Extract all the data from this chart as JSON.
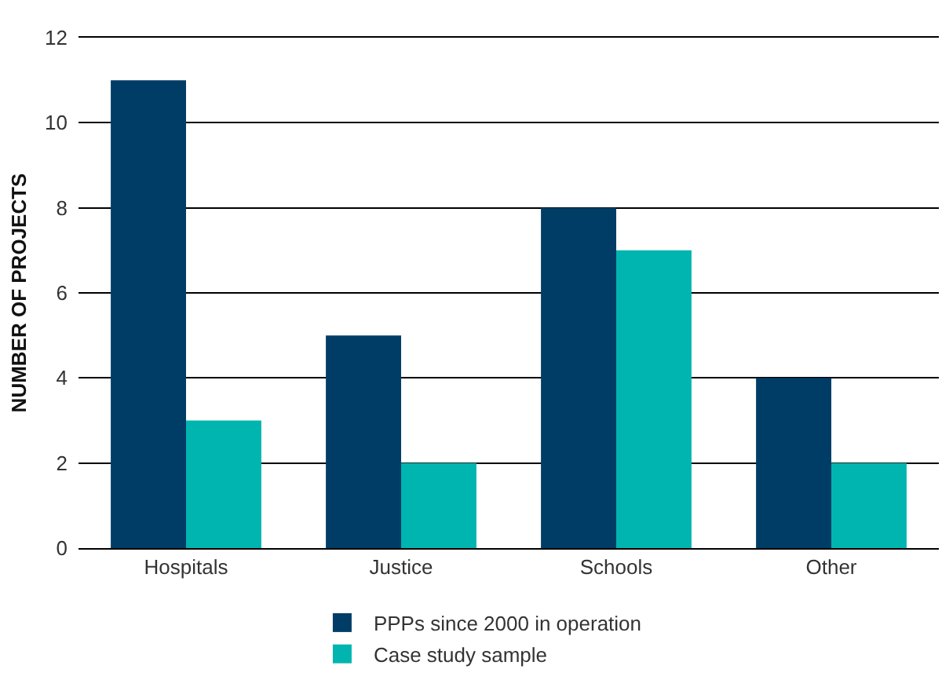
{
  "chart_data": {
    "type": "bar",
    "ylabel": "NUMBER OF PROJECTS",
    "categories": [
      "Hospitals",
      "Justice",
      "Schools",
      "Other"
    ],
    "series": [
      {
        "name": "PPPs since 2000 in operation",
        "color": "#003d66",
        "values": [
          11,
          5,
          8,
          4
        ]
      },
      {
        "name": "Case study sample",
        "color": "#00b5b0",
        "values": [
          3,
          2,
          7,
          2
        ]
      }
    ],
    "ylim": [
      0,
      12
    ],
    "yticks": [
      0,
      2,
      4,
      6,
      8,
      10,
      12
    ],
    "grid": "y",
    "legend": "bottom"
  }
}
